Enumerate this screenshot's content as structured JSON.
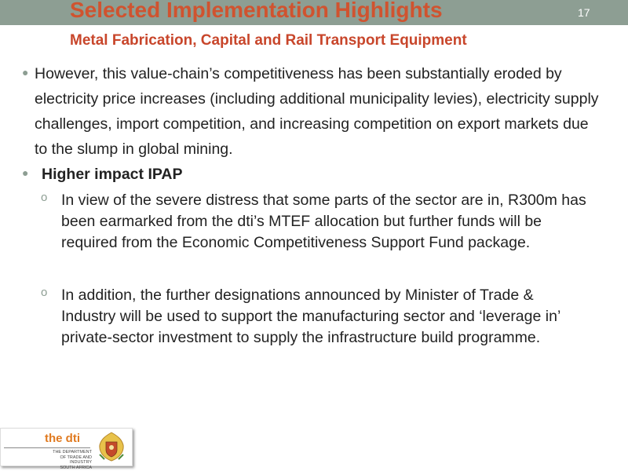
{
  "slide": {
    "title": "Selected Implementation Highlights",
    "number": "17",
    "subtitle": "Metal Fabrication, Capital and Rail Transport Equipment"
  },
  "bullets": [
    {
      "text": "However, this value-chain’s competitiveness has been substantially eroded by electricity price increases (including additional municipality levies), electricity supply challenges, import competition, and increasing competition on export markets due to the slump in global mining."
    },
    {
      "text": "Higher impact IPAP",
      "sub_items": [
        "In view of the severe distress that some parts of the sector are in, R300m has been earmarked from the dti’s MTEF allocation but further funds will be required from the Economic Competitiveness Support Fund package.",
        "In addition, the further designations announced by Minister of Trade & Industry will be used to support the manufacturing sector and ‘leverage in’ private-sector investment to supply the infrastructure build programme."
      ]
    }
  ],
  "logo": {
    "name": "the dti",
    "department_lines": [
      "THE DEPARTMENT",
      "OF TRADE AND INDUSTRY",
      "SOUTH AFRICA"
    ],
    "crest_icon": "coat-of-arms-icon"
  },
  "colors": {
    "title": "#d0532f",
    "subtitle": "#c8462b",
    "topbar": "#8d9e93",
    "logo_orange": "#e07a20"
  }
}
